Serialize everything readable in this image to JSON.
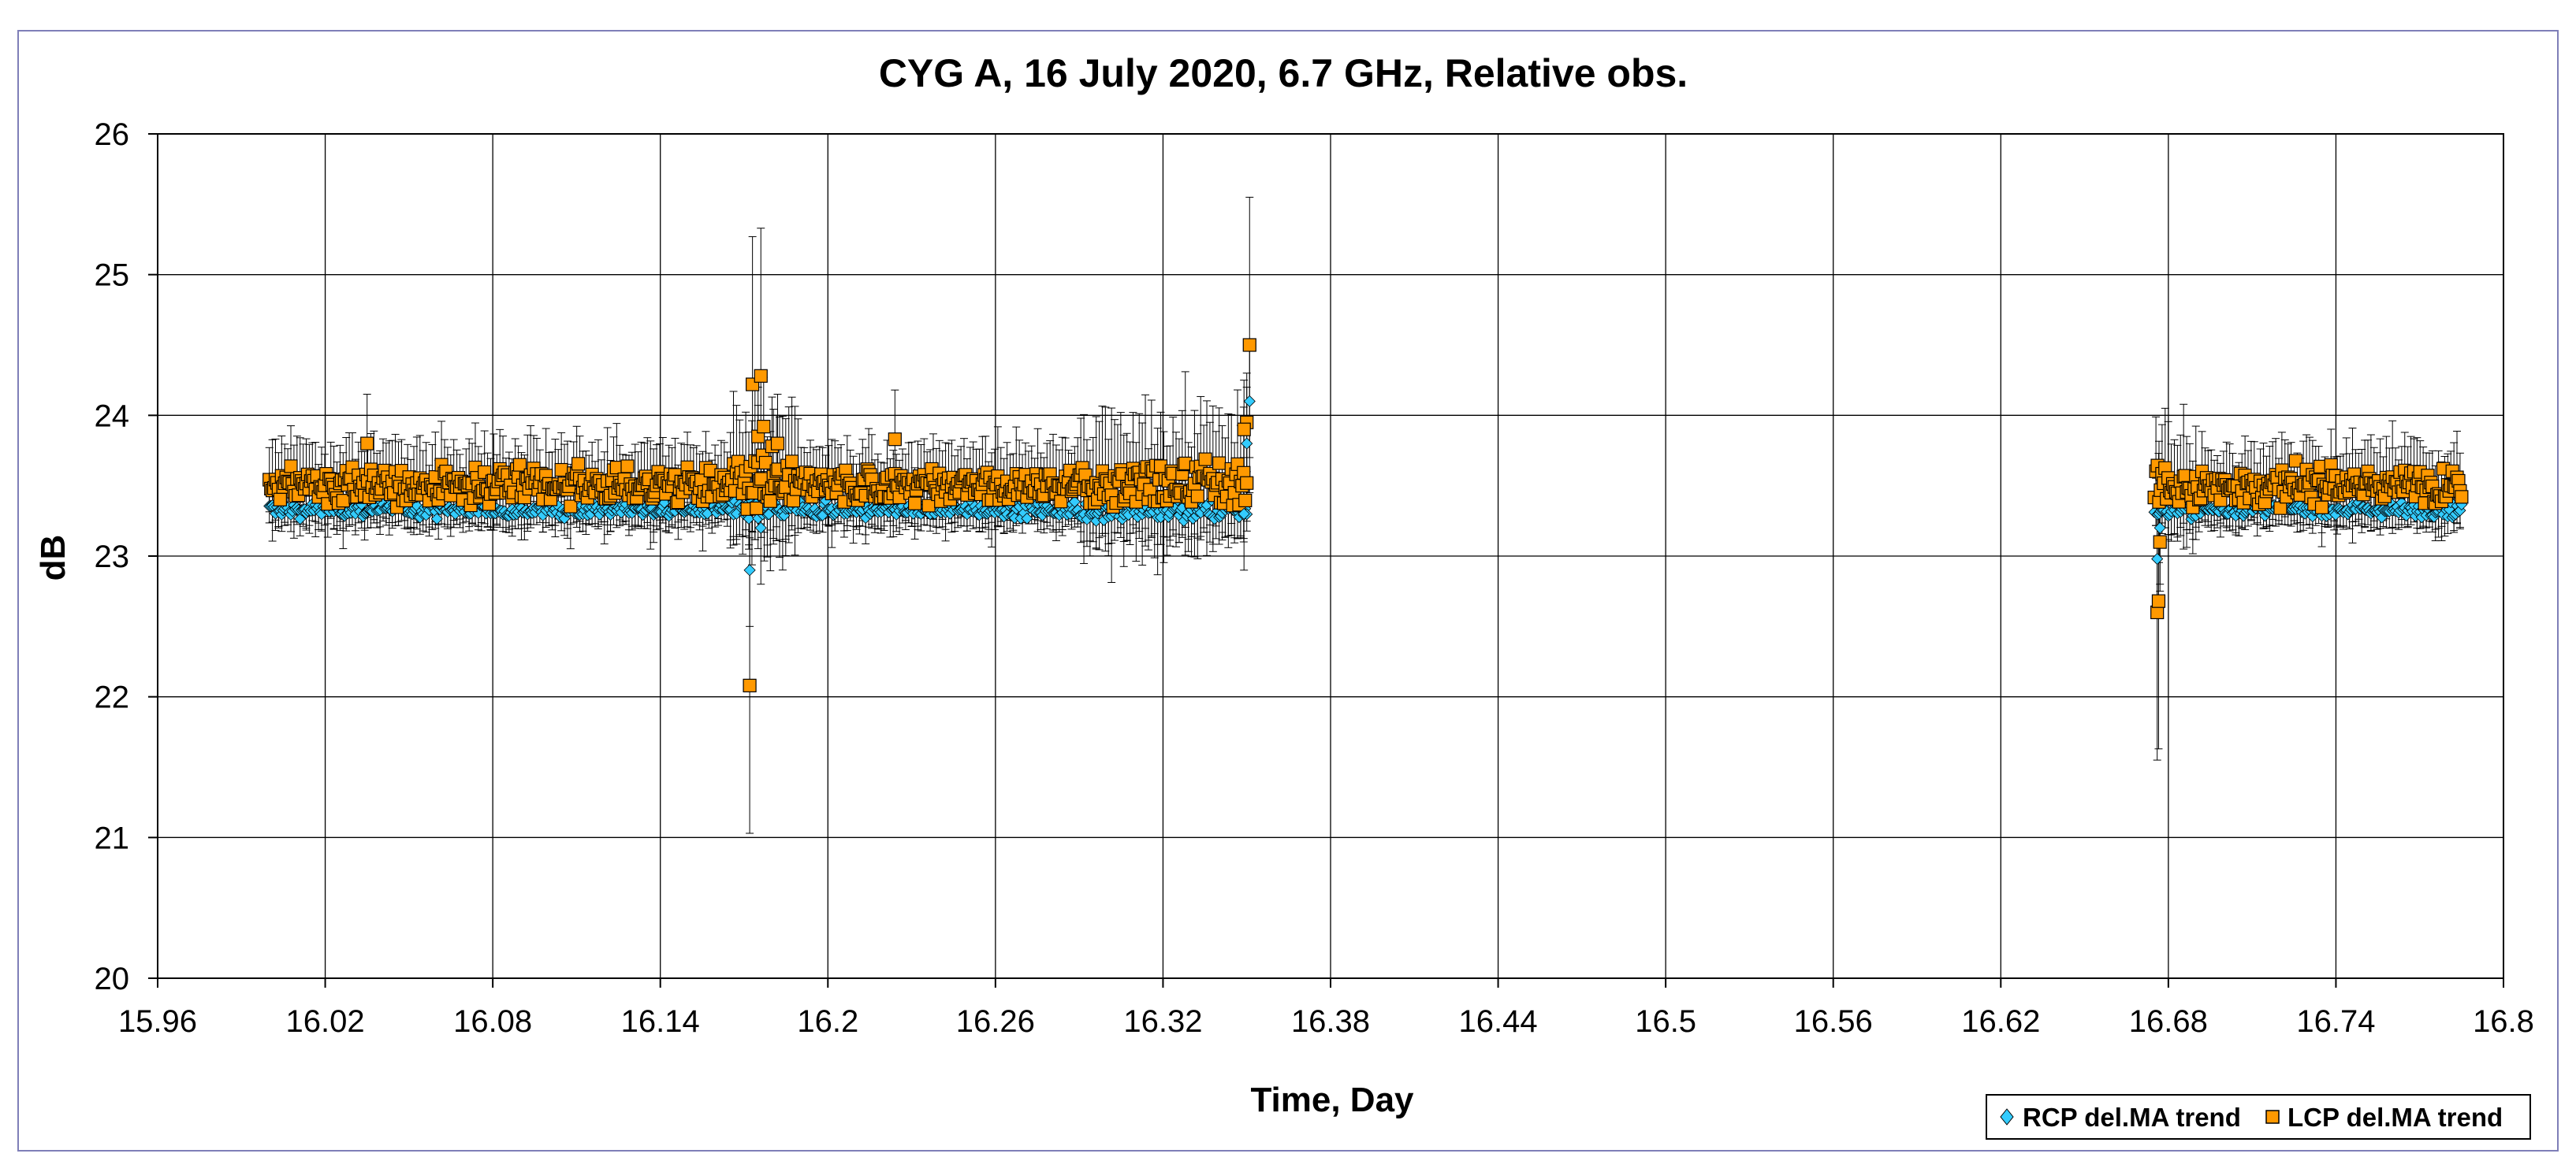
{
  "colors": {
    "rcp": "#33ccff",
    "lcp": "#ff9900",
    "marker_edge": "#000000",
    "error_bar": "#000000",
    "grid": "#000000",
    "frame": "#7f7fb8"
  },
  "chart_data": {
    "type": "scatter",
    "title": "CYG A, 16 July 2020, 6.7 GHz, Relative obs.",
    "xlabel": "Time, Day",
    "ylabel": "dB",
    "xlim": [
      15.96,
      16.8
    ],
    "ylim": [
      20,
      26
    ],
    "x_ticks": [
      "15.96",
      "16.02",
      "16.08",
      "16.14",
      "16.2",
      "16.26",
      "16.32",
      "16.38",
      "16.44",
      "16.5",
      "16.56",
      "16.62",
      "16.68",
      "16.74",
      "16.8"
    ],
    "y_ticks": [
      "20",
      "21",
      "22",
      "23",
      "24",
      "25",
      "26"
    ],
    "grid": true,
    "legend_position": "bottom-right",
    "segments": [
      {
        "x_start": 16.0,
        "x_end": 16.35
      },
      {
        "x_start": 16.675,
        "x_end": 16.785
      }
    ],
    "series": [
      {
        "name": "RCP del.MA trend",
        "marker": "diamond",
        "baseline": 23.33,
        "spread": 0.05,
        "error": 0.12,
        "outliers": [
          [
            16.172,
            22.9
          ],
          [
            16.176,
            23.2
          ],
          [
            16.349,
            23.3
          ],
          [
            16.35,
            23.8
          ],
          [
            16.351,
            24.1
          ],
          [
            16.676,
            22.98
          ],
          [
            16.677,
            23.2
          ]
        ]
      },
      {
        "name": "LCP del.MA trend",
        "marker": "square",
        "baseline": 23.5,
        "spread": 0.12,
        "error": 0.22,
        "outliers": [
          [
            16.172,
            22.08
          ],
          [
            16.173,
            24.22
          ],
          [
            16.175,
            23.85
          ],
          [
            16.176,
            24.28
          ],
          [
            16.177,
            23.92
          ],
          [
            16.18,
            23.78
          ],
          [
            16.182,
            23.8
          ],
          [
            16.351,
            24.5
          ],
          [
            16.35,
            23.95
          ],
          [
            16.349,
            23.9
          ],
          [
            16.676,
            22.6
          ],
          [
            16.6765,
            22.68
          ],
          [
            16.677,
            23.1
          ],
          [
            16.035,
            23.8
          ],
          [
            16.224,
            23.83
          ]
        ]
      }
    ]
  }
}
